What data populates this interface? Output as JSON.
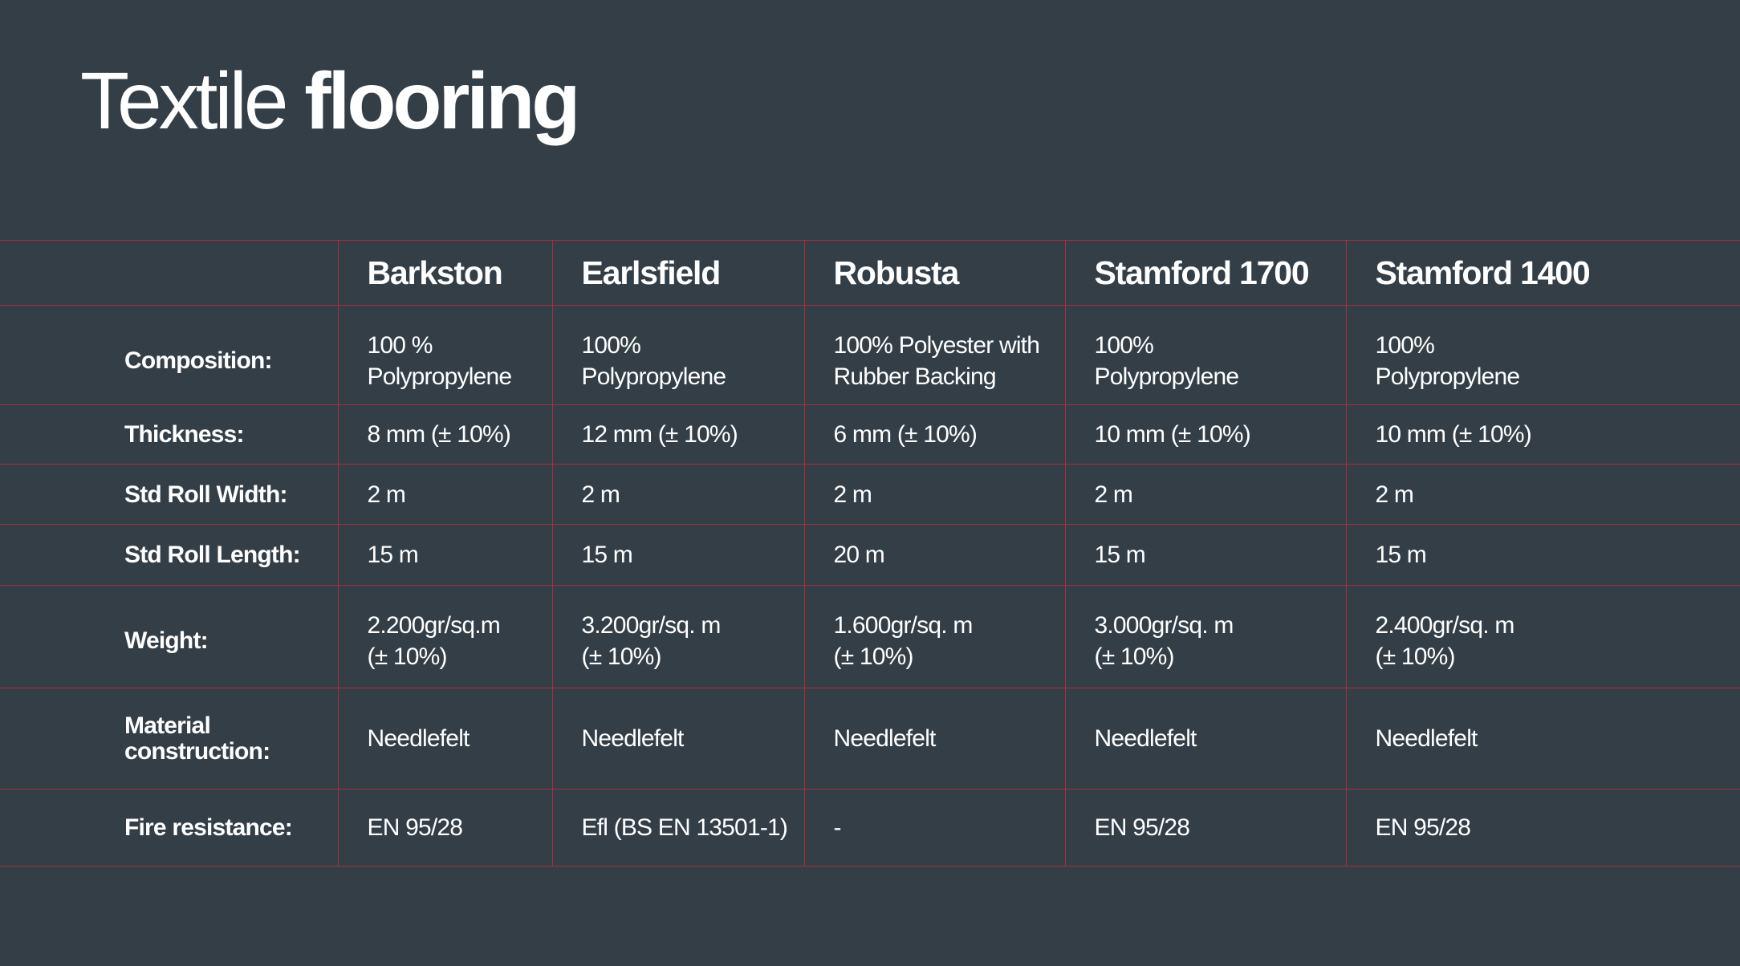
{
  "title": {
    "light": "Textile",
    "bold": "flooring"
  },
  "table": {
    "columns": [
      "Barkston",
      "Earlsfield",
      "Robusta",
      "Stamford 1700",
      "Stamford 1400"
    ],
    "rows": [
      {
        "label": "Composition:",
        "values": [
          "100 %\nPolypropylene",
          "100%\nPolypropylene",
          "100% Polyester with\nRubber Backing",
          "100%\nPolypropylene",
          "100%\nPolypropylene"
        ]
      },
      {
        "label": "Thickness:",
        "values": [
          "8 mm (± 10%)",
          "12 mm (± 10%)",
          "6 mm (± 10%)",
          "10 mm (± 10%)",
          "10 mm (± 10%)"
        ]
      },
      {
        "label": "Std Roll Width:",
        "values": [
          "2 m",
          "2 m",
          "2 m",
          "2 m",
          "2 m"
        ]
      },
      {
        "label": "Std Roll Length:",
        "values": [
          "15 m",
          "15 m",
          "20 m",
          "15 m",
          "15 m"
        ]
      },
      {
        "label": "Weight:",
        "values": [
          "2.200gr/sq.m\n(± 10%)",
          "3.200gr/sq. m\n(± 10%)",
          "1.600gr/sq. m\n(± 10%)",
          "3.000gr/sq. m\n(± 10%)",
          "2.400gr/sq. m\n(± 10%)"
        ]
      },
      {
        "label": "Material\nconstruction:",
        "values": [
          "Needlefelt",
          "Needlefelt",
          "Needlefelt",
          "Needlefelt",
          "Needlefelt"
        ]
      },
      {
        "label": "Fire resistance:",
        "values": [
          "EN 95/28",
          "Efl (BS EN 13501-1)",
          "-",
          "EN 95/28",
          "EN 95/28"
        ]
      }
    ]
  },
  "colors": {
    "background": "#333e47",
    "rule": "#a8303a",
    "text": "#ffffff"
  }
}
